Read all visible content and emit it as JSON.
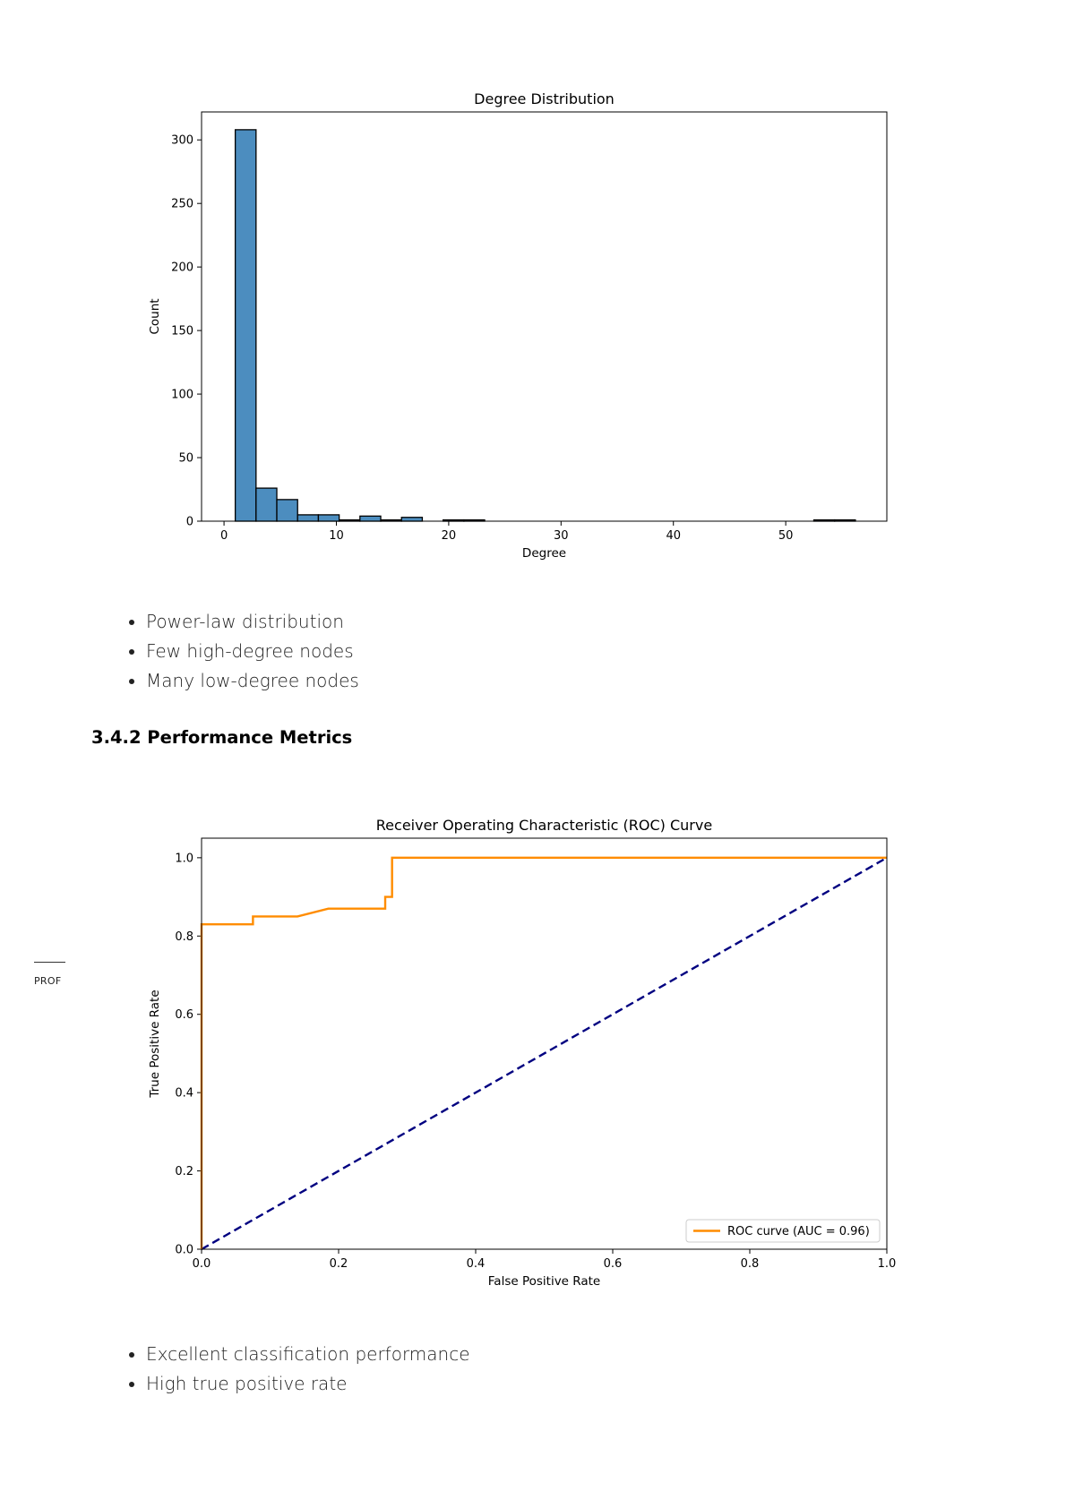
{
  "degree_bullets": [
    "Power-law distribution",
    "Few high-degree nodes",
    "Many low-degree nodes"
  ],
  "section_heading": "3.4.2 Performance Metrics",
  "margin_note": "PROF",
  "perf_bullets": [
    "Excellent classification performance",
    "High true positive rate"
  ],
  "colors": {
    "hist_fill": "#4c8dbf",
    "roc_line": "#ff8c00",
    "chance_line": "#000080"
  },
  "chart_data": [
    {
      "type": "bar",
      "title": "Degree Distribution",
      "xlabel": "Degree",
      "ylabel": "Count",
      "xlim": [
        -2,
        59
      ],
      "ylim": [
        0,
        322
      ],
      "xticks": [
        0,
        10,
        20,
        30,
        40,
        50
      ],
      "yticks": [
        0,
        50,
        100,
        150,
        200,
        250,
        300
      ],
      "bins": [
        {
          "x0": 1,
          "x1": 2.85,
          "value": 308
        },
        {
          "x0": 2.85,
          "x1": 4.7,
          "value": 26
        },
        {
          "x0": 4.7,
          "x1": 6.55,
          "value": 17
        },
        {
          "x0": 6.55,
          "x1": 8.4,
          "value": 5
        },
        {
          "x0": 8.4,
          "x1": 10.25,
          "value": 5
        },
        {
          "x0": 10.25,
          "x1": 12.1,
          "value": 1
        },
        {
          "x0": 12.1,
          "x1": 13.95,
          "value": 4
        },
        {
          "x0": 13.95,
          "x1": 15.8,
          "value": 1
        },
        {
          "x0": 15.8,
          "x1": 17.65,
          "value": 3
        },
        {
          "x0": 17.65,
          "x1": 19.5,
          "value": 0
        },
        {
          "x0": 19.5,
          "x1": 21.35,
          "value": 1
        },
        {
          "x0": 21.35,
          "x1": 23.2,
          "value": 1
        },
        {
          "x0": 52.5,
          "x1": 54.35,
          "value": 1
        },
        {
          "x0": 54.35,
          "x1": 56.2,
          "value": 1
        }
      ]
    },
    {
      "type": "line",
      "title": "Receiver Operating Characteristic (ROC) Curve",
      "xlabel": "False Positive Rate",
      "ylabel": "True Positive Rate",
      "xlim": [
        0,
        1
      ],
      "ylim": [
        0,
        1.05
      ],
      "xticks": [
        0.0,
        0.2,
        0.4,
        0.6,
        0.8,
        1.0
      ],
      "yticks": [
        0.0,
        0.2,
        0.4,
        0.6,
        0.8,
        1.0
      ],
      "legend_position": "lower right",
      "series": [
        {
          "name": "ROC curve (AUC = 0.96)",
          "style": "solid",
          "x": [
            0,
            0,
            0.075,
            0.075,
            0.14,
            0.185,
            0.268,
            0.268,
            0.278,
            0.278,
            1.0
          ],
          "y": [
            0,
            0.83,
            0.83,
            0.85,
            0.85,
            0.87,
            0.87,
            0.9,
            0.9,
            1.0,
            1.0
          ]
        },
        {
          "style": "dashed",
          "x": [
            0,
            1
          ],
          "y": [
            0,
            1
          ]
        }
      ]
    }
  ]
}
